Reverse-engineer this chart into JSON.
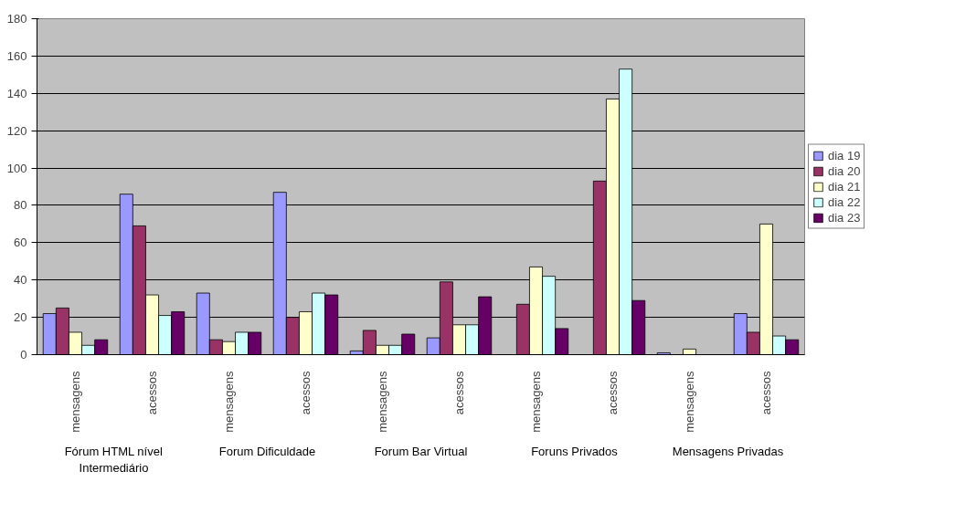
{
  "chart_data": {
    "type": "bar",
    "categories": [
      "mensagens",
      "acessos",
      "mensagens",
      "acessos",
      "mensagens",
      "acessos",
      "mensagens",
      "acessos",
      "mensagens",
      "acessos"
    ],
    "annotations": [
      "Fórum HTML nível Intermediário",
      "Forum Dificuldade",
      "Forum Bar Virtual",
      "Foruns Privados",
      "Mensagens Privadas"
    ],
    "series": [
      {
        "name": "dia 19",
        "color": "#9999ff",
        "values": [
          22,
          86,
          33,
          87,
          2,
          9,
          null,
          null,
          1,
          22
        ]
      },
      {
        "name": "dia 20",
        "color": "#993366",
        "values": [
          25,
          69,
          8,
          20,
          13,
          39,
          27,
          93,
          null,
          12
        ]
      },
      {
        "name": "dia 21",
        "color": "#ffffcc",
        "values": [
          12,
          32,
          7,
          23,
          5,
          16,
          47,
          137,
          3,
          70
        ]
      },
      {
        "name": "dia 22",
        "color": "#ccffff",
        "values": [
          5,
          21,
          12,
          33,
          5,
          16,
          42,
          153,
          null,
          10
        ]
      },
      {
        "name": "dia 23",
        "color": "#660066",
        "values": [
          8,
          23,
          12,
          32,
          11,
          31,
          14,
          29,
          null,
          8
        ]
      }
    ],
    "ylim": [
      0,
      180
    ],
    "yticks": [
      0,
      20,
      40,
      60,
      80,
      100,
      120,
      140,
      160,
      180
    ],
    "grid": "y",
    "legend": "right"
  }
}
